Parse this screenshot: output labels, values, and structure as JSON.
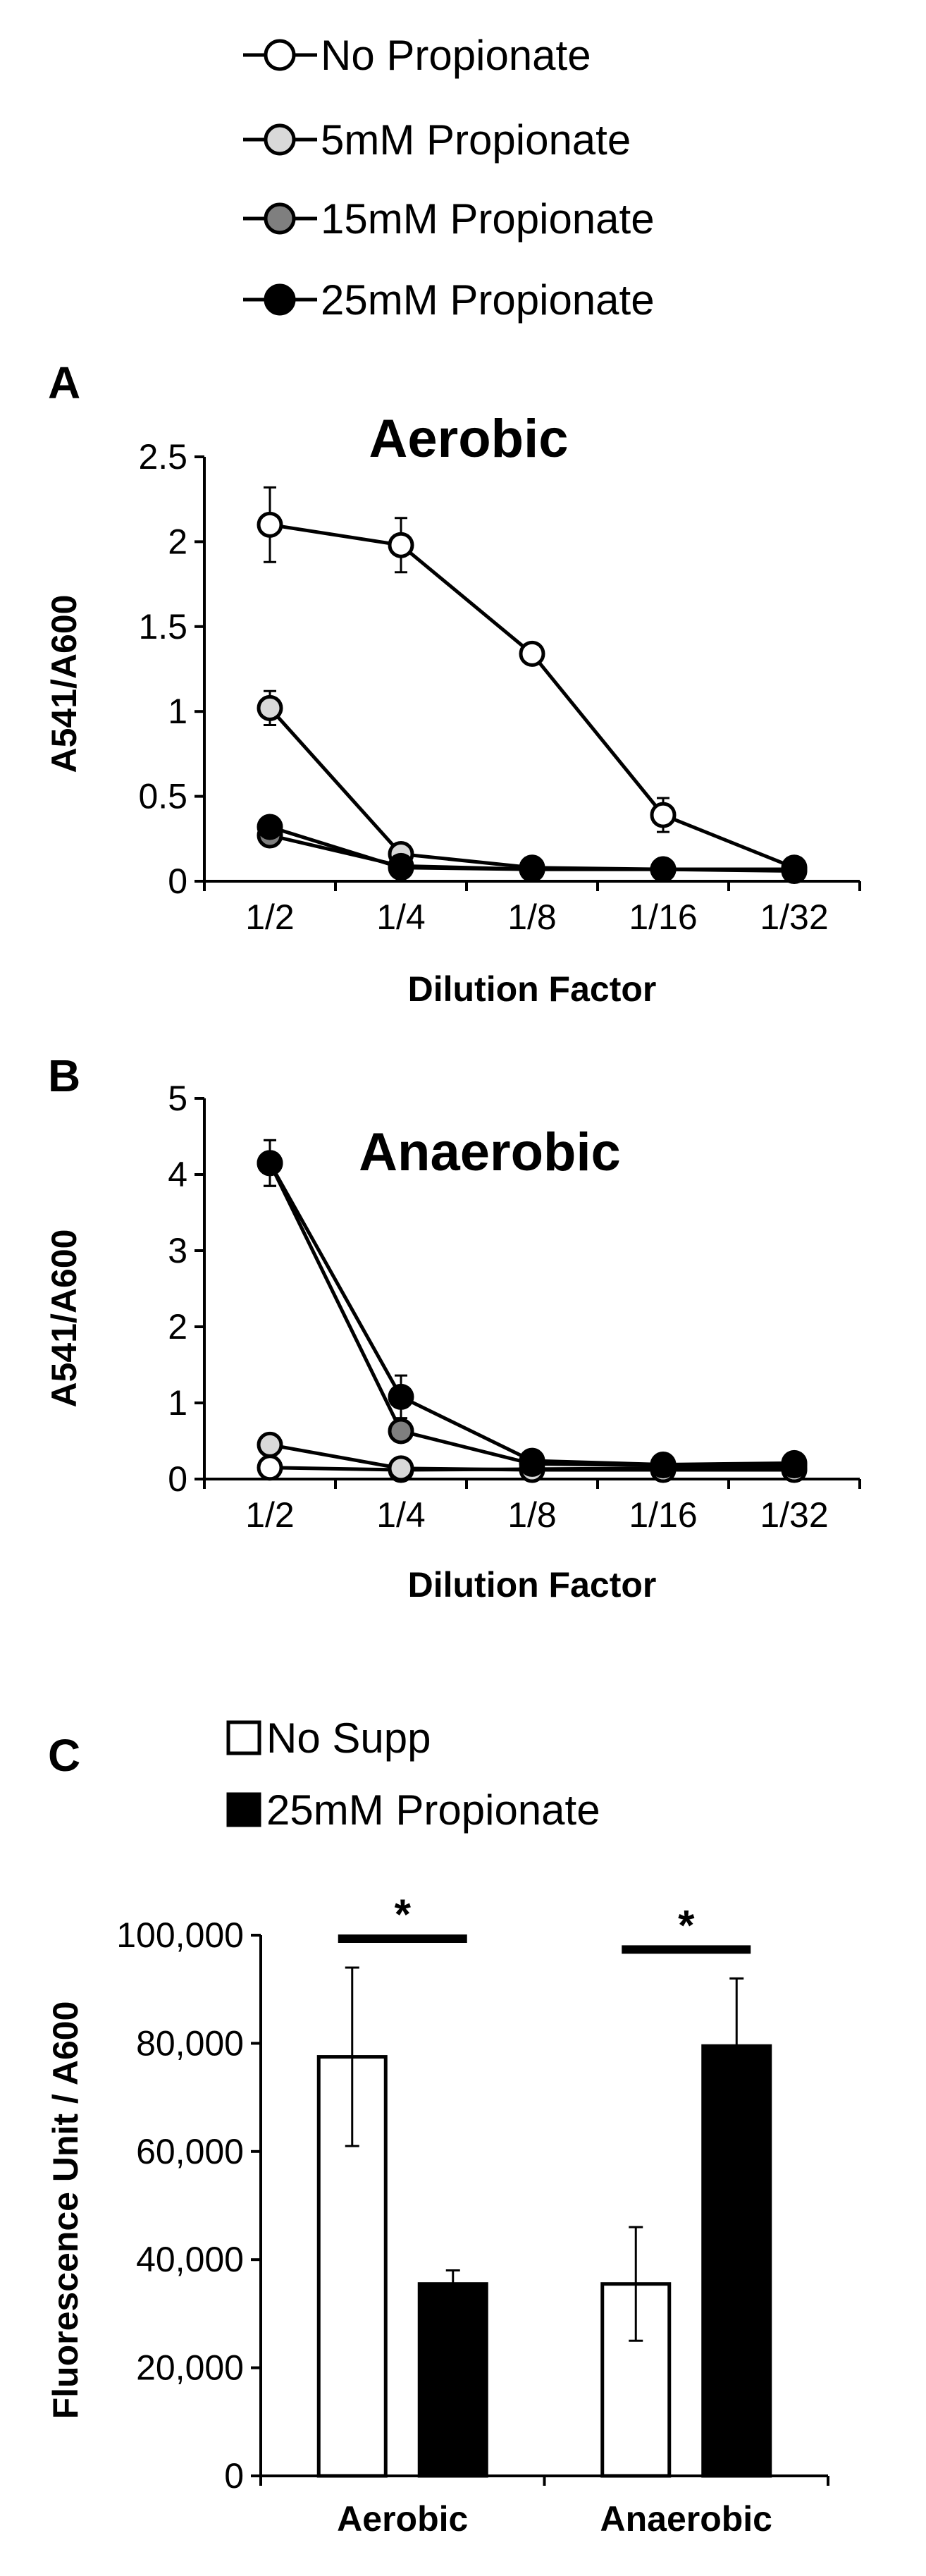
{
  "legend_lines": [
    {
      "label": "No Propionate",
      "color": "#ffffff"
    },
    {
      "label": "5mM Propionate",
      "color": "#d9d9d9"
    },
    {
      "label": "15mM Propionate",
      "color": "#7f7f7f"
    },
    {
      "label": "25mM Propionate",
      "color": "#000000"
    }
  ],
  "legend_bars": [
    {
      "label": "No Supp",
      "color": "#ffffff"
    },
    {
      "label": "25mM Propionate",
      "color": "#000000"
    }
  ],
  "chart_data": [
    {
      "panel": "A",
      "type": "line",
      "title": "Aerobic",
      "xlabel": "Dilution Factor",
      "ylabel": "A541/A600",
      "categories": [
        "1/2",
        "1/4",
        "1/8",
        "1/16",
        "1/32"
      ],
      "ylim": [
        0,
        2.5
      ],
      "yticks": [
        0,
        0.5,
        1,
        1.5,
        2,
        2.5
      ],
      "ytick_labels": [
        "0",
        "0.5",
        "1",
        "1.5",
        "2",
        "2.5"
      ],
      "series": [
        {
          "name": "No Propionate",
          "color": "#ffffff",
          "values": [
            2.1,
            1.98,
            1.34,
            0.39,
            0.08
          ],
          "errors": [
            0.22,
            0.16,
            0.03,
            0.1,
            0.02
          ]
        },
        {
          "name": "5mM Propionate",
          "color": "#d9d9d9",
          "values": [
            1.02,
            0.16,
            0.08,
            0.07,
            0.06
          ],
          "errors": [
            0.1,
            0.03,
            0.01,
            0.01,
            0.01
          ]
        },
        {
          "name": "15mM Propionate",
          "color": "#7f7f7f",
          "values": [
            0.27,
            0.09,
            0.07,
            0.07,
            0.07
          ],
          "errors": [
            0.03,
            0.01,
            0.01,
            0.01,
            0.01
          ]
        },
        {
          "name": "25mM Propionate",
          "color": "#000000",
          "values": [
            0.32,
            0.08,
            0.07,
            0.07,
            0.07
          ],
          "errors": [
            0.03,
            0.01,
            0.01,
            0.01,
            0.01
          ]
        }
      ]
    },
    {
      "panel": "B",
      "type": "line",
      "title": "Anaerobic",
      "xlabel": "Dilution Factor",
      "ylabel": "A541/A600",
      "categories": [
        "1/2",
        "1/4",
        "1/8",
        "1/16",
        "1/32"
      ],
      "ylim": [
        0,
        5
      ],
      "yticks": [
        0,
        1,
        2,
        3,
        4,
        5
      ],
      "ytick_labels": [
        "0",
        "1",
        "2",
        "3",
        "4",
        "5"
      ],
      "series": [
        {
          "name": "No Propionate",
          "color": "#ffffff",
          "values": [
            0.15,
            0.12,
            0.13,
            0.14,
            0.14
          ],
          "errors": [
            0.02,
            0.01,
            0.01,
            0.01,
            0.01
          ]
        },
        {
          "name": "5mM Propionate",
          "color": "#d9d9d9",
          "values": [
            0.45,
            0.14,
            0.12,
            0.12,
            0.12
          ],
          "errors": [
            0.04,
            0.01,
            0.01,
            0.01,
            0.01
          ]
        },
        {
          "name": "15mM Propionate",
          "color": "#7f7f7f",
          "values": [
            4.15,
            0.63,
            0.2,
            0.18,
            0.18
          ],
          "errors": [
            0.3,
            0.08,
            0.02,
            0.02,
            0.02
          ]
        },
        {
          "name": "25mM Propionate",
          "color": "#000000",
          "values": [
            4.15,
            1.08,
            0.24,
            0.19,
            0.21
          ],
          "errors": [
            0.3,
            0.28,
            0.03,
            0.02,
            0.02
          ]
        }
      ]
    },
    {
      "panel": "C",
      "type": "bar",
      "title": "",
      "xlabel": "",
      "ylabel": "Fluorescence Unit / A600",
      "categories": [
        "Aerobic",
        "Anaerobic"
      ],
      "ylim": [
        0,
        100000
      ],
      "yticks": [
        0,
        20000,
        40000,
        60000,
        80000,
        100000
      ],
      "ytick_labels": [
        "0",
        "20,000",
        "40,000",
        "60,000",
        "80,000",
        "100,000"
      ],
      "significance_marker": "*",
      "series": [
        {
          "name": "No Supp",
          "color": "#ffffff",
          "values": [
            77500,
            35500
          ],
          "errors": [
            16500,
            10500
          ]
        },
        {
          "name": "25mM Propionate",
          "color": "#000000",
          "values": [
            35500,
            79500
          ],
          "errors": [
            2500,
            12500
          ]
        }
      ]
    }
  ]
}
